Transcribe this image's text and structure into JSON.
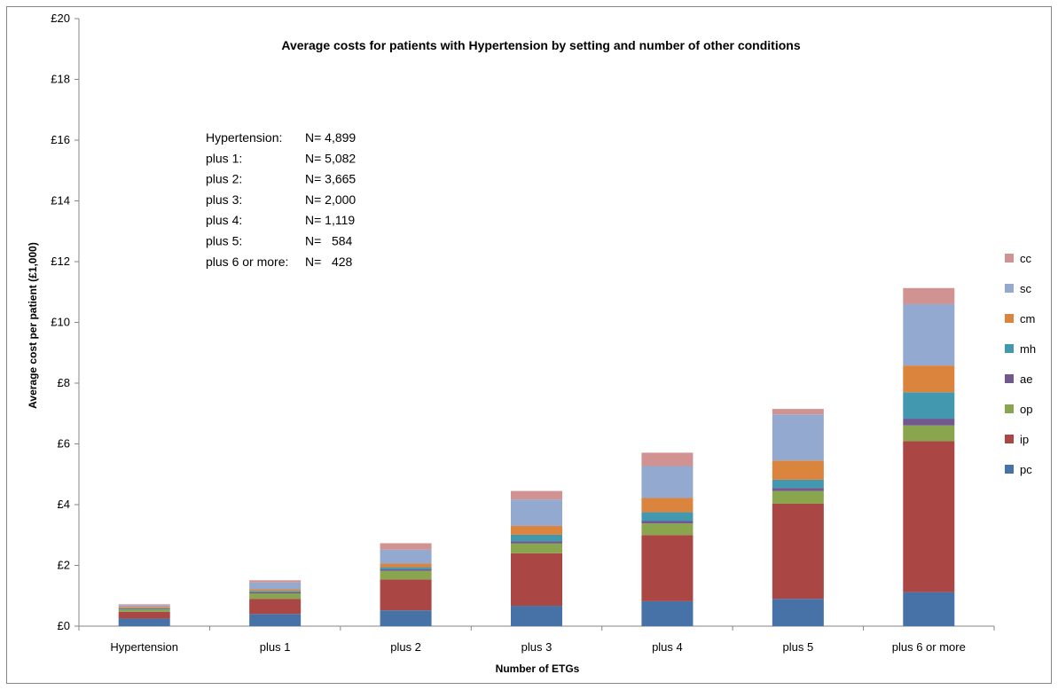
{
  "chart_data": {
    "type": "bar",
    "stacked": true,
    "title": "Average costs for patients with Hypertension by setting and number of other conditions",
    "xlabel": "Number of ETGs",
    "ylabel": "Average cost per patient (£1,000)",
    "ylim": [
      0,
      20
    ],
    "yticks": [
      "£0",
      "£2",
      "£4",
      "£6",
      "£8",
      "£10",
      "£12",
      "£14",
      "£16",
      "£18",
      "£20"
    ],
    "ytick_values": [
      0,
      2,
      4,
      6,
      8,
      10,
      12,
      14,
      16,
      18,
      20
    ],
    "grid": false,
    "legend_position": "right",
    "categories": [
      "Hypertension",
      "plus 1",
      "plus 2",
      "plus 3",
      "plus 4",
      "plus 5",
      "plus 6 or more"
    ],
    "series": [
      {
        "name": "pc",
        "color": "#4672A8",
        "values": [
          0.25,
          0.4,
          0.52,
          0.67,
          0.82,
          0.9,
          1.12
        ]
      },
      {
        "name": "ip",
        "color": "#AA4643",
        "values": [
          0.22,
          0.5,
          1.02,
          1.73,
          2.18,
          3.13,
          4.97
        ]
      },
      {
        "name": "op",
        "color": "#89A54E",
        "values": [
          0.08,
          0.18,
          0.28,
          0.32,
          0.38,
          0.42,
          0.52
        ]
      },
      {
        "name": "ae",
        "color": "#71588F",
        "values": [
          0.02,
          0.03,
          0.05,
          0.07,
          0.08,
          0.1,
          0.22
        ]
      },
      {
        "name": "mh",
        "color": "#4198AF",
        "values": [
          0.02,
          0.04,
          0.07,
          0.22,
          0.29,
          0.27,
          0.87
        ]
      },
      {
        "name": "cm",
        "color": "#DB843D",
        "values": [
          0.04,
          0.06,
          0.12,
          0.29,
          0.47,
          0.63,
          0.88
        ]
      },
      {
        "name": "sc",
        "color": "#93A9CF",
        "values": [
          0.05,
          0.23,
          0.46,
          0.87,
          1.05,
          1.52,
          2.02
        ]
      },
      {
        "name": "cc",
        "color": "#D19392",
        "values": [
          0.04,
          0.07,
          0.21,
          0.28,
          0.44,
          0.18,
          0.53
        ]
      }
    ],
    "annotation": [
      {
        "label": "Hypertension:",
        "n": "N= 4,899"
      },
      {
        "label": "plus 1:",
        "n": "N= 5,082"
      },
      {
        "label": "plus 2:",
        "n": "N= 3,665"
      },
      {
        "label": "plus 3:",
        "n": "N= 2,000"
      },
      {
        "label": "plus 4:",
        "n": "N= 1,119"
      },
      {
        "label": "plus 5:",
        "n": "N=   584"
      },
      {
        "label": "plus 6 or more:",
        "n": "N=   428"
      }
    ]
  }
}
